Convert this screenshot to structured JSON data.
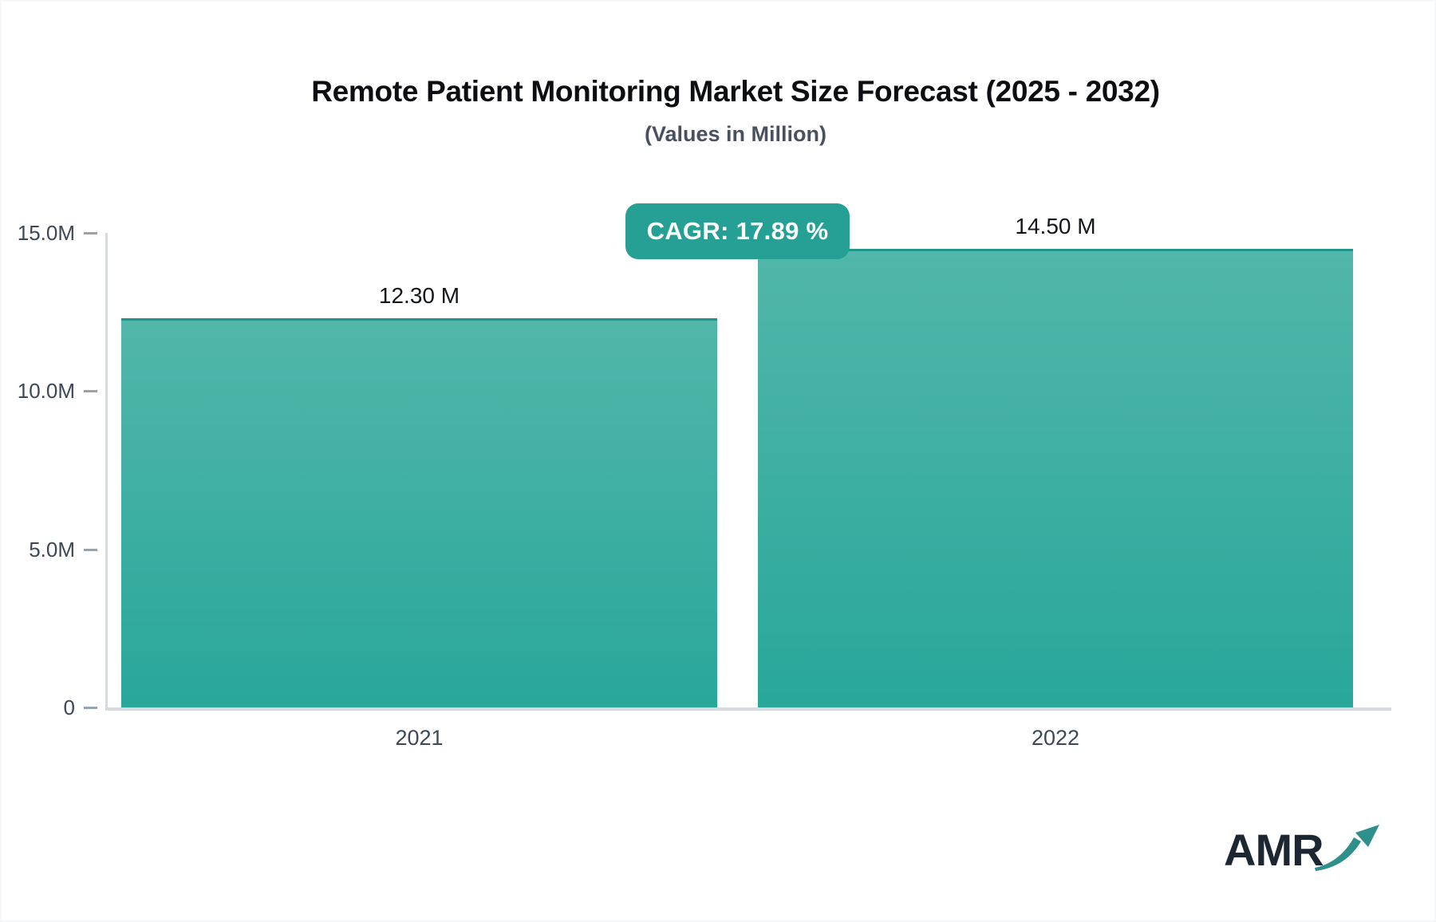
{
  "header": {
    "title": "Remote Patient Monitoring Market Size Forecast (2025 - 2032)",
    "subtitle": "(Values in Million)"
  },
  "cagr_badge": {
    "label": "CAGR: 17.89 %"
  },
  "chart_data": {
    "type": "bar",
    "title": "Remote Patient Monitoring Market Size Forecast (2025 - 2032)",
    "subtitle": "(Values in Million)",
    "categories": [
      "2021",
      "2022"
    ],
    "values": [
      12.3,
      14.5
    ],
    "value_labels": [
      "12.30 M",
      "14.50 M"
    ],
    "xlabel": "",
    "ylabel": "",
    "ylim": [
      0,
      15
    ],
    "y_ticks": [
      {
        "value": 0,
        "label": "0"
      },
      {
        "value": 5,
        "label": "5.0M"
      },
      {
        "value": 10,
        "label": "10.0M"
      },
      {
        "value": 15,
        "label": "15.0M"
      }
    ],
    "grid": false,
    "legend": false,
    "annotations": [
      {
        "text": "CAGR: 17.89 %",
        "position": "top-center, between bar tops"
      }
    ]
  },
  "logo": {
    "text": "AMR",
    "arrow_icon": "growth-arrow-icon"
  },
  "colors": {
    "bar_gradient_top": "#52b6aa",
    "bar_gradient_bottom": "#28a79a",
    "bar_top_border": "#1d958b",
    "badge_bg": "#26a095",
    "badge_text": "#ffffff",
    "axis_line": "#d6d9de",
    "tick_mark": "#9aa2ad",
    "tick_text": "#3d4857",
    "value_text": "#13161a",
    "title_text": "#0c0e11",
    "subtitle_text": "#49505f",
    "logo_text": "#1d2732",
    "logo_arrow": "#2f8f8a"
  }
}
